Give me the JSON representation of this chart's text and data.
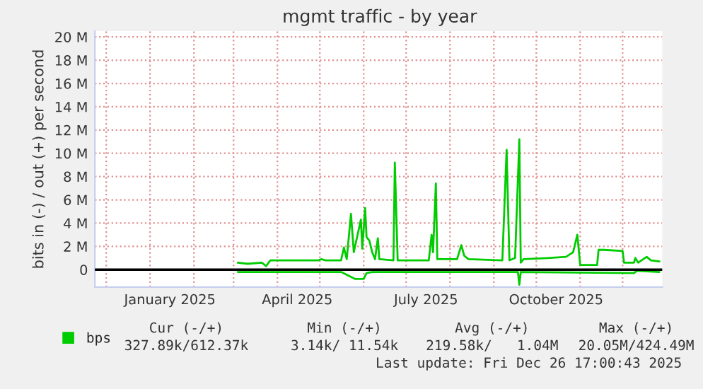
{
  "chart_data": {
    "type": "line",
    "title": "mgmt traffic - by year",
    "ylabel": "bits in (-) / out (+) per second",
    "xlim": [
      "2024-11-23",
      "2025-12-29"
    ],
    "xticks": [
      {
        "value": "2024-12-01",
        "label": null
      },
      {
        "value": "2025-01-01",
        "label": null
      },
      {
        "value": "2025-01-15",
        "label": "January 2025"
      },
      {
        "value": "2025-02-01",
        "label": null
      },
      {
        "value": "2025-03-01",
        "label": null
      },
      {
        "value": "2025-04-01",
        "label": null
      },
      {
        "value": "2025-04-15",
        "label": "April 2025"
      },
      {
        "value": "2025-05-01",
        "label": null
      },
      {
        "value": "2025-06-01",
        "label": null
      },
      {
        "value": "2025-07-01",
        "label": null
      },
      {
        "value": "2025-07-15",
        "label": "July 2025"
      },
      {
        "value": "2025-08-01",
        "label": null
      },
      {
        "value": "2025-09-01",
        "label": null
      },
      {
        "value": "2025-10-01",
        "label": null
      },
      {
        "value": "2025-10-15",
        "label": "October 2025"
      },
      {
        "value": "2025-11-01",
        "label": null
      },
      {
        "value": "2025-12-01",
        "label": null
      }
    ],
    "ylim": [
      -1500000,
      20500000
    ],
    "yticks": [
      0,
      {
        "value": 2000000,
        "label": "2 M"
      },
      {
        "value": 4000000,
        "label": "4 M"
      },
      {
        "value": 6000000,
        "label": "6 M"
      },
      {
        "value": 8000000,
        "label": "8 M"
      },
      {
        "value": 10000000,
        "label": "10 M"
      },
      {
        "value": 12000000,
        "label": "12 M"
      },
      {
        "value": 14000000,
        "label": "14 M"
      },
      {
        "value": 16000000,
        "label": "16 M"
      },
      {
        "value": 18000000,
        "label": "18 M"
      },
      {
        "value": 20000000,
        "label": "20 M"
      }
    ],
    "grid": true,
    "legend": "bottom left",
    "marker": "none",
    "line_style": "solid",
    "ref_lines": [
      {
        "axis": "y",
        "value": 0,
        "color": "#000000"
      }
    ],
    "series": [
      {
        "name": "bps",
        "color": "#00cc00",
        "x": [
          "2025-03-04",
          "2025-03-11",
          "2025-03-21",
          "2025-03-24",
          "2025-03-27",
          "2025-04-30",
          "2025-05-02",
          "2025-05-05",
          "2025-05-16",
          "2025-05-18",
          "2025-05-20",
          "2025-05-23",
          "2025-05-25",
          "2025-05-30",
          "2025-05-31",
          "2025-06-02",
          "2025-06-03",
          "2025-06-05",
          "2025-06-07",
          "2025-06-09",
          "2025-06-11",
          "2025-06-12",
          "2025-06-22",
          "2025-06-23",
          "2025-06-25",
          "2025-07-17",
          "2025-07-19",
          "2025-07-20",
          "2025-07-22",
          "2025-07-23",
          "2025-08-06",
          "2025-08-09",
          "2025-08-11",
          "2025-08-14",
          "2025-09-07",
          "2025-09-10",
          "2025-09-12",
          "2025-09-16",
          "2025-09-19",
          "2025-09-20",
          "2025-09-22",
          "2025-10-09",
          "2025-10-22",
          "2025-10-27",
          "2025-10-30",
          "2025-11-01",
          "2025-11-13",
          "2025-11-14",
          "2025-11-18",
          "2025-12-01",
          "2025-12-02",
          "2025-12-09",
          "2025-12-10",
          "2025-12-12",
          "2025-12-18",
          "2025-12-21",
          "2025-12-27"
        ],
        "values": [
          600000,
          500000,
          600000,
          300000,
          800000,
          800000,
          900000,
          800000,
          800000,
          1900000,
          900000,
          4800000,
          1500000,
          4300000,
          1800000,
          5300000,
          2800000,
          2500000,
          1500000,
          900000,
          2700000,
          900000,
          800000,
          9200000,
          800000,
          800000,
          3000000,
          1500000,
          7400000,
          900000,
          900000,
          2100000,
          1200000,
          900000,
          800000,
          10300000,
          800000,
          1000000,
          11200000,
          600000,
          900000,
          1000000,
          1100000,
          1500000,
          3000000,
          400000,
          400000,
          1700000,
          1700000,
          1600000,
          600000,
          600000,
          1000000,
          600000,
          1100000,
          800000,
          700000
        ]
      },
      {
        "color": "#00cc00",
        "x": [
          "2025-03-04",
          "2025-05-16",
          "2025-05-21",
          "2025-05-26",
          "2025-06-01",
          "2025-06-03",
          "2025-06-07",
          "2025-09-18",
          "2025-09-19",
          "2025-09-20",
          "2025-12-09",
          "2025-12-11",
          "2025-12-27"
        ],
        "values": [
          -200000,
          -200000,
          -500000,
          -800000,
          -800000,
          -300000,
          -200000,
          -200000,
          -1300000,
          -200000,
          -300000,
          -100000,
          -200000
        ]
      }
    ],
    "annotations": [
      "Cur (-/+)",
      "Min (-/+)",
      "Avg (-/+)",
      "Max (-/+)",
      "327.89k/612.37k",
      "3.14k/ 11.54k",
      "219.58k/   1.04M",
      "20.05M/424.49M",
      "Last update: Fri Dec 26 17:00:43 2025"
    ]
  }
}
